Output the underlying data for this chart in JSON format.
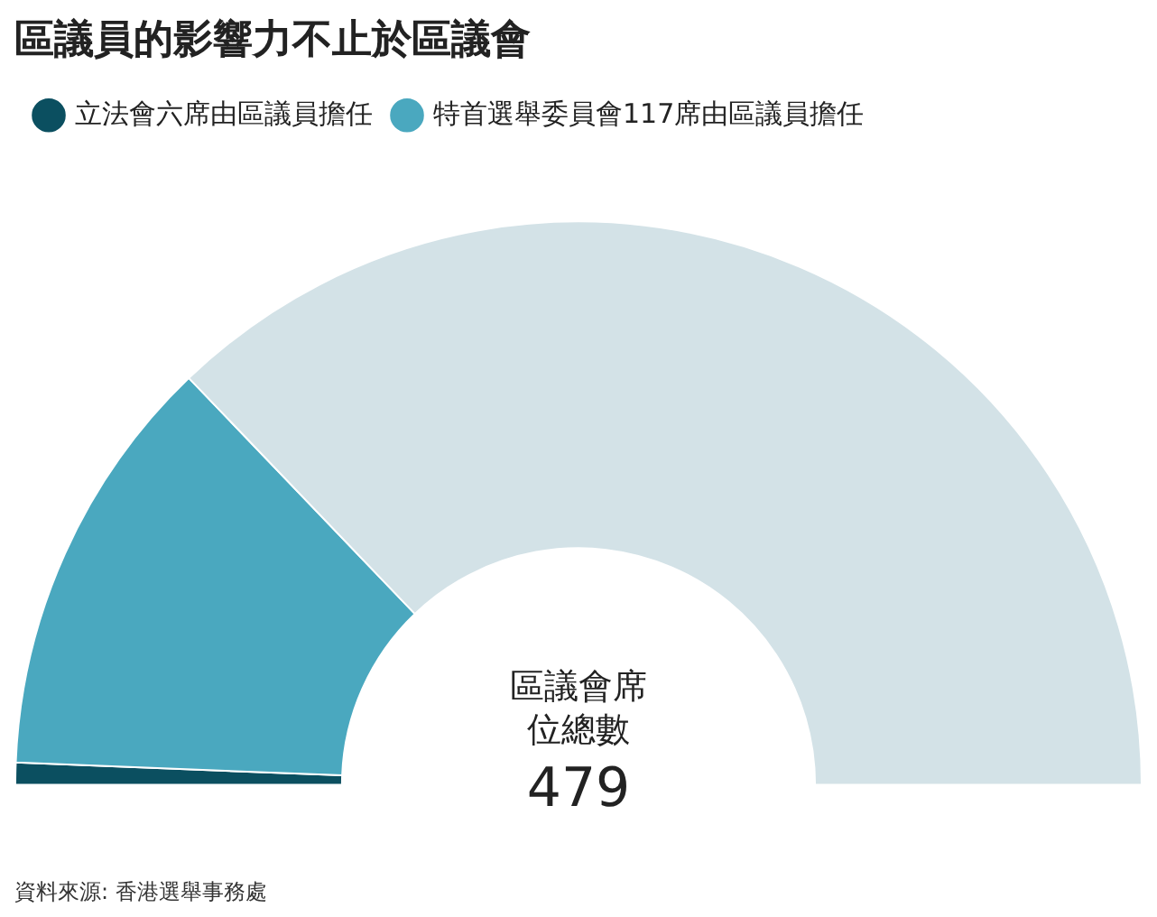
{
  "chart_data": {
    "type": "donut",
    "title": "區議員的影響力不止於區議會",
    "categories": [
      "立法會六席由區議員擔任",
      "特首選舉委員會117席由區議員擔任",
      null
    ],
    "values": [
      6,
      117,
      356
    ],
    "colors": [
      "#0b4f60",
      "#4aa8bf",
      "#d3e2e7"
    ],
    "legend": "top left",
    "annotations": [
      "區議會席位總數",
      "479",
      "資料來源: 香港選舉事務處"
    ]
  }
}
